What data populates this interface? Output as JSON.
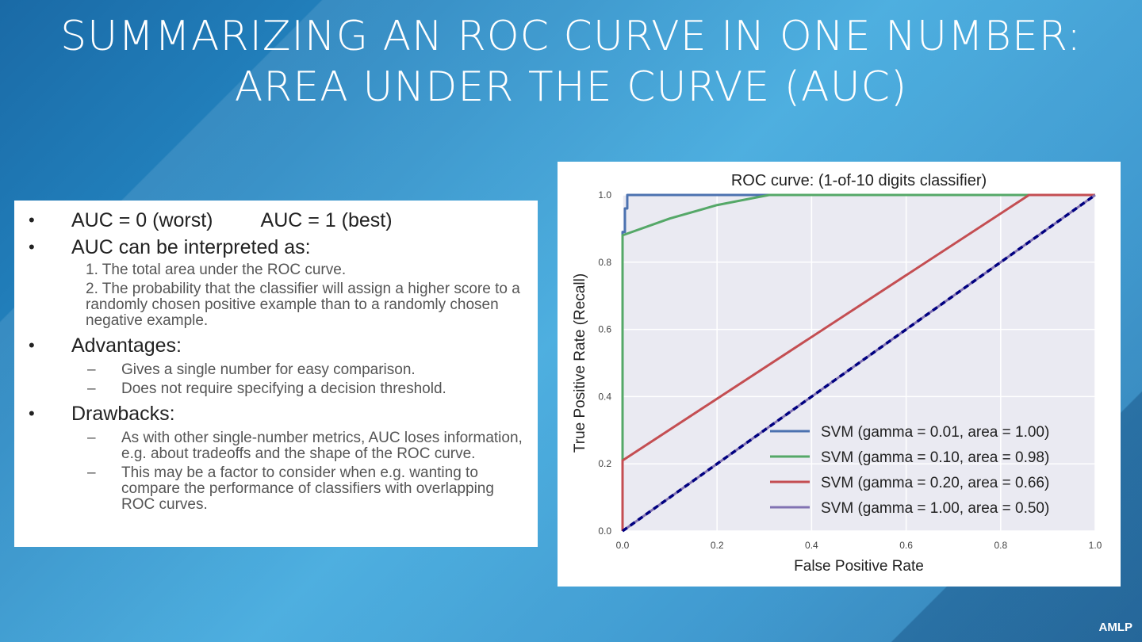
{
  "slide": {
    "title_line1": "SUMMARIZING AN ROC CURVE IN ONE NUMBER:",
    "title_line2": "AREA UNDER THE CURVE (AUC)",
    "footer": "AMLP"
  },
  "text_panel": {
    "bullet_glyph": "•",
    "dash_glyph": "–",
    "auc_worst": "AUC = 0  (worst)",
    "auc_best": "AUC = 1  (best)",
    "interpreted_heading": "AUC can be interpreted as:",
    "interp_1": "1.  The total area under the ROC curve.",
    "interp_2": "2.  The probability that the classifier will assign a higher score to a randomly chosen positive example than to a randomly chosen negative example.",
    "advantages_heading": "Advantages:",
    "adv_1": "Gives a single number for easy comparison.",
    "adv_2": "Does not require specifying a decision threshold.",
    "drawbacks_heading": "Drawbacks:",
    "draw_1": "As with other single-number metrics, AUC loses information, e.g. about tradeoffs and the shape of the ROC curve.",
    "draw_2": "This may be a factor to consider when e.g. wanting to compare the performance of classifiers with overlapping ROC curves."
  },
  "chart_data": {
    "type": "line",
    "title": "ROC curve: (1-of-10 digits classifier)",
    "xlabel": "False Positive Rate",
    "ylabel": "True Positive Rate (Recall)",
    "xlim": [
      0,
      1
    ],
    "ylim": [
      0,
      1
    ],
    "xticks": [
      "0.0",
      "0.2",
      "0.4",
      "0.6",
      "0.8",
      "1.0"
    ],
    "yticks": [
      "0.0",
      "0.2",
      "0.4",
      "0.6",
      "0.8",
      "1.0"
    ],
    "grid": true,
    "legend_position": "lower-right",
    "background_color": "#eaeaf2",
    "series": [
      {
        "name": "SVM (gamma = 0.01, area = 1.00)",
        "color": "#4c72b0",
        "dash": false,
        "x": [
          0,
          0,
          0.005,
          0.005,
          0.01,
          0.01,
          1.0
        ],
        "y": [
          0,
          0.89,
          0.89,
          0.96,
          0.96,
          1.0,
          1.0
        ]
      },
      {
        "name": "SVM (gamma = 0.10, area = 0.98)",
        "color": "#55a868",
        "dash": false,
        "x": [
          0,
          0,
          0.1,
          0.2,
          0.31,
          1.0
        ],
        "y": [
          0,
          0.88,
          0.93,
          0.97,
          1.0,
          1.0
        ]
      },
      {
        "name": "SVM (gamma = 0.20, area = 0.66)",
        "color": "#c44e52",
        "dash": false,
        "x": [
          0,
          0,
          0.86,
          1.0
        ],
        "y": [
          0,
          0.21,
          1.0,
          1.0
        ]
      },
      {
        "name": "SVM (gamma = 1.00, area = 0.50)",
        "color": "#8172b2",
        "dash": false,
        "x": [
          0,
          1.0
        ],
        "y": [
          0,
          1.0
        ]
      },
      {
        "name": "",
        "color": "#000080",
        "dash": true,
        "x": [
          0,
          1.0
        ],
        "y": [
          0,
          1.0
        ]
      }
    ]
  }
}
